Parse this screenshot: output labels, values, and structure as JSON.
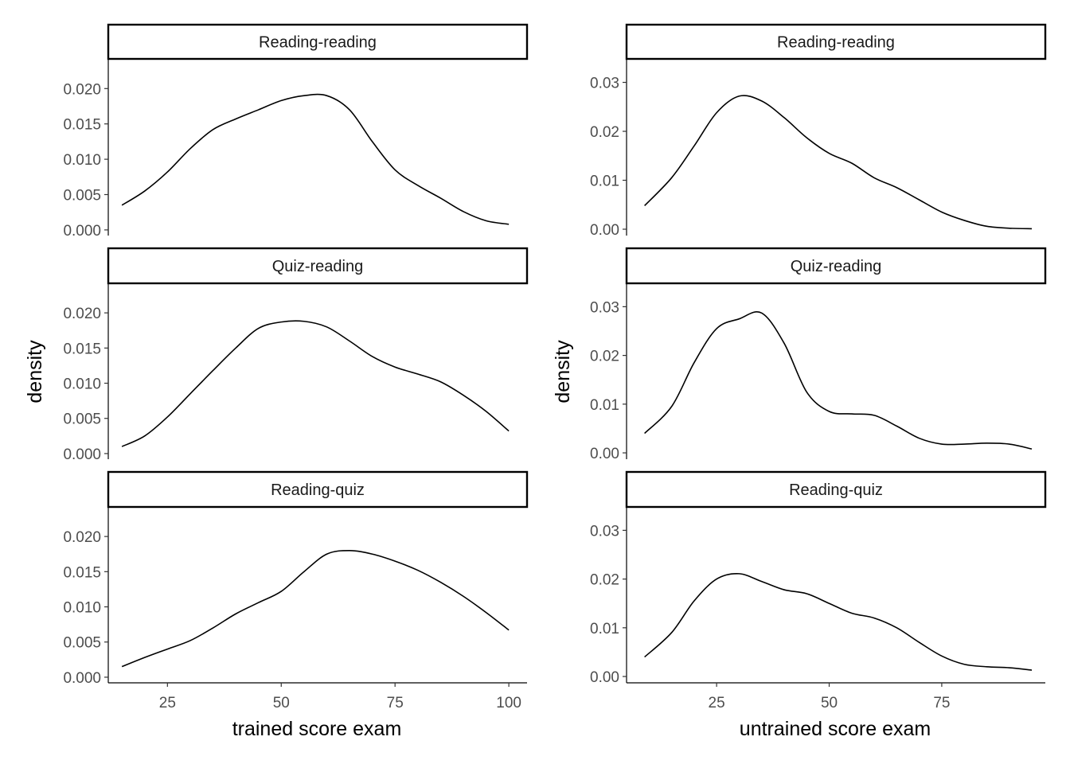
{
  "chart_data": [
    {
      "type": "line",
      "facet_strip": "Reading-reading",
      "xlabel": "trained score exam",
      "ylabel": "density",
      "xlim": [
        12,
        104
      ],
      "ylim": [
        -0.0008,
        0.0242
      ],
      "x_ticks": [
        25,
        50,
        75,
        100
      ],
      "y_ticks": [
        0.0,
        0.005,
        0.01,
        0.015,
        0.02
      ],
      "y_tick_labels": [
        "0.000",
        "0.005",
        "0.010",
        "0.015",
        "0.020"
      ],
      "series": [
        {
          "x": [
            15,
            20,
            25,
            30,
            35,
            40,
            45,
            50,
            55,
            60,
            65,
            70,
            75,
            80,
            85,
            90,
            95,
            100
          ],
          "y": [
            0.0035,
            0.0055,
            0.0082,
            0.0115,
            0.0142,
            0.0157,
            0.017,
            0.0183,
            0.019,
            0.019,
            0.017,
            0.0125,
            0.0085,
            0.0063,
            0.0045,
            0.0026,
            0.0013,
            0.0008
          ]
        }
      ]
    },
    {
      "type": "line",
      "facet_strip": "Reading-reading",
      "xlabel": "untrained score exam",
      "ylabel": "",
      "xlim": [
        5,
        98
      ],
      "ylim": [
        -0.0013,
        0.0348
      ],
      "x_ticks": [
        25,
        50,
        75
      ],
      "y_ticks": [
        0.0,
        0.01,
        0.02,
        0.03
      ],
      "y_tick_labels": [
        "0.00",
        "0.01",
        "0.02",
        "0.03"
      ],
      "series": [
        {
          "x": [
            9,
            15,
            20,
            25,
            30,
            35,
            40,
            45,
            50,
            55,
            60,
            65,
            70,
            75,
            80,
            85,
            90,
            95
          ],
          "y": [
            0.0048,
            0.0105,
            0.017,
            0.0238,
            0.0272,
            0.0262,
            0.0228,
            0.0187,
            0.0155,
            0.0135,
            0.0105,
            0.0085,
            0.006,
            0.0035,
            0.0018,
            0.0006,
            0.0002,
            0.0001
          ]
        }
      ]
    },
    {
      "type": "line",
      "facet_strip": "Quiz-reading",
      "xlabel": "trained score exam",
      "ylabel": "density",
      "xlim": [
        12,
        104
      ],
      "ylim": [
        -0.0008,
        0.0242
      ],
      "x_ticks": [
        25,
        50,
        75,
        100
      ],
      "y_ticks": [
        0.0,
        0.005,
        0.01,
        0.015,
        0.02
      ],
      "y_tick_labels": [
        "0.000",
        "0.005",
        "0.010",
        "0.015",
        "0.020"
      ],
      "series": [
        {
          "x": [
            15,
            20,
            25,
            30,
            35,
            40,
            45,
            50,
            55,
            60,
            65,
            70,
            75,
            80,
            85,
            90,
            95,
            100
          ],
          "y": [
            0.001,
            0.0025,
            0.0052,
            0.0085,
            0.0118,
            0.015,
            0.0178,
            0.0187,
            0.0188,
            0.018,
            0.016,
            0.0138,
            0.0123,
            0.0113,
            0.0102,
            0.0083,
            0.006,
            0.0032
          ]
        }
      ]
    },
    {
      "type": "line",
      "facet_strip": "Quiz-reading",
      "xlabel": "untrained score exam",
      "ylabel": "density",
      "xlim": [
        5,
        98
      ],
      "ylim": [
        -0.0013,
        0.0348
      ],
      "x_ticks": [
        25,
        50,
        75
      ],
      "y_ticks": [
        0.0,
        0.01,
        0.02,
        0.03
      ],
      "y_tick_labels": [
        "0.00",
        "0.01",
        "0.02",
        "0.03"
      ],
      "series": [
        {
          "x": [
            9,
            15,
            20,
            25,
            30,
            35,
            40,
            45,
            50,
            55,
            60,
            65,
            70,
            75,
            80,
            85,
            90,
            95
          ],
          "y": [
            0.004,
            0.0095,
            0.0185,
            0.0255,
            0.0275,
            0.0287,
            0.0225,
            0.0125,
            0.0085,
            0.008,
            0.0077,
            0.0055,
            0.003,
            0.0018,
            0.0018,
            0.002,
            0.0018,
            0.0008
          ]
        }
      ]
    },
    {
      "type": "line",
      "facet_strip": "Reading-quiz",
      "xlabel": "trained score exam",
      "ylabel": "",
      "xlim": [
        12,
        104
      ],
      "ylim": [
        -0.0008,
        0.0242
      ],
      "x_ticks": [
        25,
        50,
        75,
        100
      ],
      "y_ticks": [
        0.0,
        0.005,
        0.01,
        0.015,
        0.02
      ],
      "y_tick_labels": [
        "0.000",
        "0.005",
        "0.010",
        "0.015",
        "0.020"
      ],
      "x_tick_labels": [
        "25",
        "50",
        "75",
        "100"
      ],
      "series": [
        {
          "x": [
            15,
            20,
            25,
            30,
            35,
            40,
            45,
            50,
            55,
            60,
            65,
            70,
            75,
            80,
            85,
            90,
            95,
            100
          ],
          "y": [
            0.0015,
            0.0028,
            0.004,
            0.0052,
            0.007,
            0.009,
            0.0106,
            0.0122,
            0.015,
            0.0175,
            0.018,
            0.0175,
            0.0165,
            0.0152,
            0.0135,
            0.0115,
            0.0092,
            0.0067
          ]
        }
      ]
    },
    {
      "type": "line",
      "facet_strip": "Reading-quiz",
      "xlabel": "untrained score exam",
      "ylabel": "",
      "xlim": [
        5,
        98
      ],
      "ylim": [
        -0.0013,
        0.0348
      ],
      "x_ticks": [
        25,
        50,
        75
      ],
      "y_ticks": [
        0.0,
        0.01,
        0.02,
        0.03
      ],
      "y_tick_labels": [
        "0.00",
        "0.01",
        "0.02",
        "0.03"
      ],
      "x_tick_labels": [
        "25",
        "50",
        "75"
      ],
      "series": [
        {
          "x": [
            9,
            15,
            20,
            25,
            30,
            35,
            40,
            45,
            50,
            55,
            60,
            65,
            70,
            75,
            80,
            85,
            90,
            95
          ],
          "y": [
            0.004,
            0.009,
            0.0155,
            0.02,
            0.0211,
            0.0195,
            0.0178,
            0.017,
            0.015,
            0.013,
            0.012,
            0.01,
            0.007,
            0.0042,
            0.0025,
            0.002,
            0.0018,
            0.0013
          ]
        }
      ]
    }
  ],
  "axis_titles": {
    "left_y": "density",
    "right_y": "density",
    "left_x": "trained score exam",
    "right_x": "untrained score exam"
  }
}
